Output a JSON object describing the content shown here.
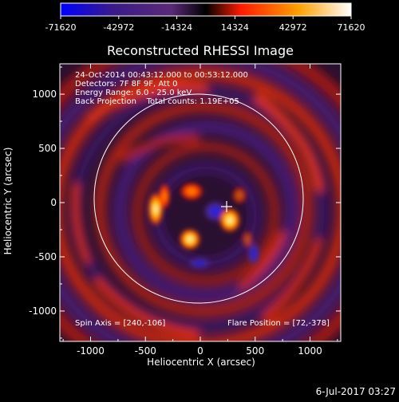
{
  "colorbar": {
    "ticks": [
      "-71620",
      "-42972",
      "-14324",
      "14324",
      "42972",
      "71620"
    ],
    "colors": [
      "#0000ff",
      "#3a1a8a",
      "#5a2a78",
      "#000000",
      "#ff1a00",
      "#ffa000",
      "#ffffff"
    ]
  },
  "plot": {
    "title": "Reconstructed RHESSI Image",
    "xlabel": "Heliocentric X (arcsec)",
    "ylabel": "Heliocentric Y (arcsec)",
    "x_ticks": [
      "-1000",
      "-500",
      "0",
      "500",
      "1000"
    ],
    "y_ticks": [
      "1000",
      "500",
      "0",
      "-500",
      "-1000"
    ],
    "info_lines": [
      "24-Oct-2014 00:43:12.000 to 00:53:12.000",
      "Detectors: 7F 8F 9F, Att 0",
      "Energy Range: 6.0 - 25.0 keV",
      "Back Projection    Total counts: 1.19E+05"
    ],
    "spin_axis": "Spin Axis = [240,-106]",
    "flare_position": "Flare Position = [72,-378]",
    "footer_date": "6-Jul-2017 03:27"
  },
  "chart_data": {
    "type": "heatmap",
    "title": "Reconstructed RHESSI Image",
    "xlabel": "Heliocentric X (arcsec)",
    "ylabel": "Heliocentric Y (arcsec)",
    "xlim": [
      -1280,
      1280
    ],
    "ylim": [
      -1280,
      1280
    ],
    "colorbar_range": [
      -71620,
      71620
    ],
    "solar_limb_radius": 970,
    "center_marker": [
      240,
      -106
    ],
    "bright_sources": [
      {
        "x": 280,
        "y": -180,
        "value": 71620
      },
      {
        "x": -80,
        "y": -370,
        "value": 71620
      },
      {
        "x": -410,
        "y": -90,
        "value": 60000
      },
      {
        "x": 60,
        "y": 50,
        "value": 30000
      }
    ],
    "dark_source": {
      "x": 190,
      "y": -80,
      "value": -71620
    }
  }
}
